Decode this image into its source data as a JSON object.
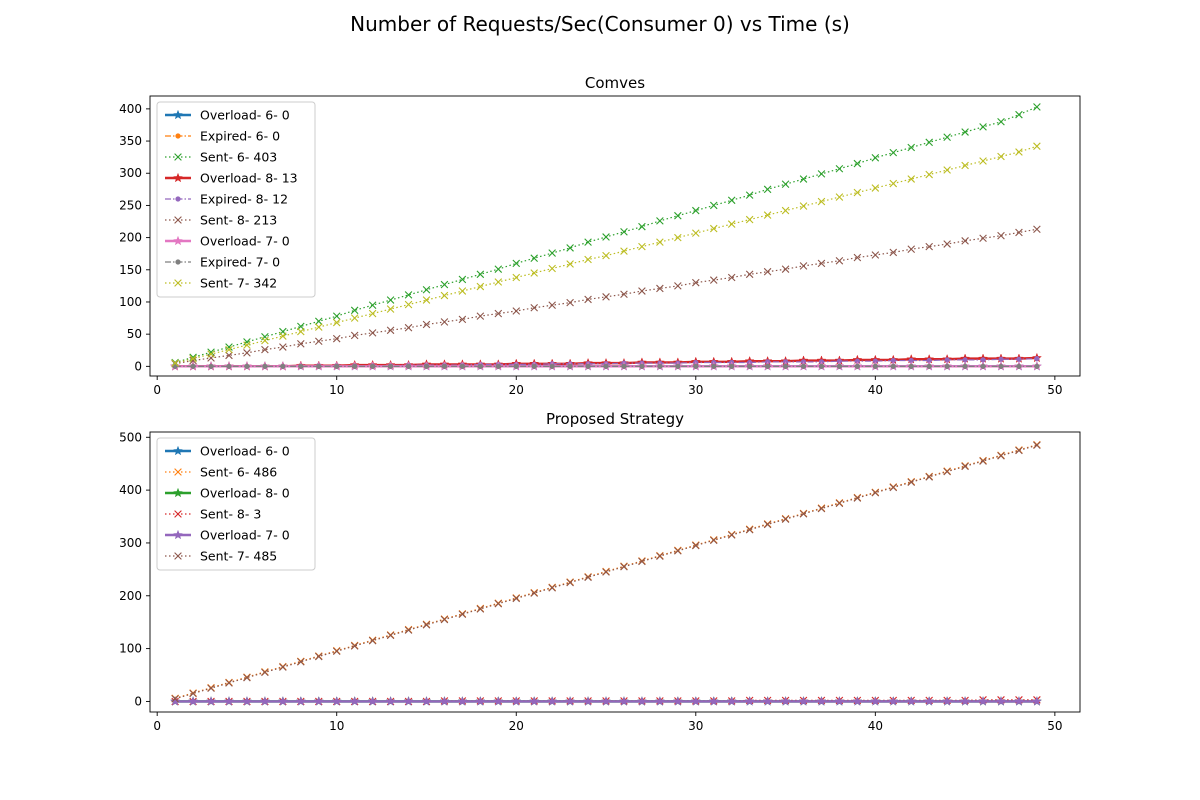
{
  "figure": {
    "suptitle": "Number of Requests/Sec(Consumer 0) vs Time (s)"
  },
  "chart_data": [
    {
      "type": "line",
      "title": "Comves",
      "xlabel": "",
      "ylabel": "",
      "xlim": [
        -0.4,
        51.4
      ],
      "ylim": [
        -15,
        420
      ],
      "x_ticks": [
        0,
        10,
        20,
        30,
        40,
        50
      ],
      "y_ticks": [
        0,
        50,
        100,
        150,
        200,
        250,
        300,
        350,
        400
      ],
      "grid": false,
      "legend_position": "upper-left",
      "x": [
        1,
        2,
        3,
        4,
        5,
        6,
        7,
        8,
        9,
        10,
        11,
        12,
        13,
        14,
        15,
        16,
        17,
        18,
        19,
        20,
        21,
        22,
        23,
        24,
        25,
        26,
        27,
        28,
        29,
        30,
        31,
        32,
        33,
        34,
        35,
        36,
        37,
        38,
        39,
        40,
        41,
        42,
        43,
        44,
        45,
        46,
        47,
        48,
        49
      ],
      "series": [
        {
          "name": "Overload- 6- 0",
          "color": "#1f77b4",
          "style": "solid-star",
          "values": [
            0,
            0,
            0,
            0,
            0,
            0,
            0,
            0,
            0,
            0,
            0,
            0,
            0,
            0,
            0,
            0,
            0,
            0,
            0,
            0,
            0,
            0,
            0,
            0,
            0,
            0,
            0,
            0,
            0,
            0,
            0,
            0,
            0,
            0,
            0,
            0,
            0,
            0,
            0,
            0,
            0,
            0,
            0,
            0,
            0,
            0,
            0,
            0,
            0
          ]
        },
        {
          "name": "Expired- 6- 0",
          "color": "#ff7f0e",
          "style": "dashdot-dot",
          "values": [
            0,
            0,
            0,
            0,
            0,
            0,
            0,
            0,
            0,
            0,
            0,
            0,
            0,
            0,
            0,
            0,
            0,
            0,
            0,
            0,
            0,
            0,
            0,
            0,
            0,
            0,
            0,
            0,
            0,
            0,
            0,
            0,
            0,
            0,
            0,
            0,
            0,
            0,
            0,
            0,
            0,
            0,
            0,
            0,
            0,
            0,
            0,
            0,
            0
          ]
        },
        {
          "name": "Sent- 6- 403",
          "color": "#2ca02c",
          "style": "dotted-x",
          "values": [
            6,
            14,
            22,
            30,
            38,
            46,
            54,
            62,
            70,
            78,
            87,
            95,
            103,
            111,
            119,
            127,
            135,
            143,
            151,
            160,
            168,
            176,
            184,
            193,
            201,
            209,
            217,
            226,
            234,
            242,
            250,
            258,
            266,
            275,
            283,
            291,
            299,
            307,
            315,
            324,
            332,
            340,
            348,
            356,
            364,
            372,
            380,
            391,
            403
          ]
        },
        {
          "name": "Overload- 8- 13",
          "color": "#d62728",
          "style": "solid-star",
          "values": [
            0,
            0,
            0,
            0,
            0,
            0,
            0,
            1,
            1,
            1,
            2,
            2,
            2,
            2,
            3,
            3,
            3,
            3,
            3,
            4,
            4,
            4,
            4,
            5,
            5,
            5,
            6,
            6,
            6,
            7,
            7,
            7,
            8,
            8,
            8,
            9,
            9,
            9,
            10,
            10,
            10,
            11,
            11,
            11,
            12,
            12,
            12,
            12,
            13
          ]
        },
        {
          "name": "Expired- 8- 12",
          "color": "#9467bd",
          "style": "dashdot-dot",
          "values": [
            0,
            0,
            0,
            0,
            0,
            0,
            0,
            0,
            1,
            1,
            1,
            1,
            1,
            2,
            2,
            2,
            2,
            3,
            3,
            3,
            3,
            4,
            4,
            4,
            4,
            5,
            5,
            5,
            5,
            6,
            6,
            6,
            6,
            7,
            7,
            7,
            7,
            8,
            8,
            8,
            9,
            9,
            9,
            10,
            10,
            10,
            11,
            11,
            12
          ]
        },
        {
          "name": "Sent- 8- 213",
          "color": "#8c564b",
          "style": "dotted-x",
          "values": [
            4,
            9,
            13,
            17,
            21,
            26,
            30,
            35,
            39,
            43,
            48,
            52,
            56,
            60,
            65,
            69,
            73,
            78,
            82,
            86,
            91,
            95,
            99,
            104,
            108,
            112,
            117,
            121,
            125,
            130,
            134,
            138,
            143,
            147,
            151,
            156,
            160,
            164,
            169,
            173,
            177,
            182,
            186,
            190,
            195,
            199,
            203,
            208,
            213
          ]
        },
        {
          "name": "Overload- 7- 0",
          "color": "#e377c2",
          "style": "solid-star",
          "values": [
            0,
            0,
            0,
            0,
            0,
            0,
            0,
            0,
            0,
            0,
            0,
            0,
            0,
            0,
            0,
            0,
            0,
            0,
            0,
            0,
            0,
            0,
            0,
            0,
            0,
            0,
            0,
            0,
            0,
            0,
            0,
            0,
            0,
            0,
            0,
            0,
            0,
            0,
            0,
            0,
            0,
            0,
            0,
            0,
            0,
            0,
            0,
            0,
            0
          ]
        },
        {
          "name": "Expired- 7- 0",
          "color": "#7f7f7f",
          "style": "dashdot-dot",
          "values": [
            0,
            0,
            0,
            0,
            0,
            0,
            0,
            0,
            0,
            0,
            0,
            0,
            0,
            0,
            0,
            0,
            0,
            0,
            0,
            0,
            0,
            0,
            0,
            0,
            0,
            0,
            0,
            0,
            0,
            0,
            0,
            0,
            0,
            0,
            0,
            0,
            0,
            0,
            0,
            0,
            0,
            0,
            0,
            0,
            0,
            0,
            0,
            0,
            0
          ]
        },
        {
          "name": "Sent- 7- 342",
          "color": "#bcbd22",
          "style": "dotted-x",
          "values": [
            5,
            12,
            19,
            26,
            33,
            40,
            47,
            54,
            61,
            68,
            75,
            82,
            89,
            96,
            103,
            110,
            117,
            124,
            131,
            138,
            145,
            152,
            159,
            166,
            172,
            179,
            186,
            193,
            200,
            207,
            214,
            221,
            228,
            235,
            242,
            249,
            256,
            263,
            270,
            277,
            284,
            291,
            298,
            305,
            312,
            319,
            326,
            333,
            342
          ]
        }
      ]
    },
    {
      "type": "line",
      "title": "Proposed Strategy",
      "xlabel": "",
      "ylabel": "",
      "xlim": [
        -0.4,
        51.4
      ],
      "ylim": [
        -20,
        510
      ],
      "x_ticks": [
        0,
        10,
        20,
        30,
        40,
        50
      ],
      "y_ticks": [
        0,
        100,
        200,
        300,
        400,
        500
      ],
      "grid": false,
      "legend_position": "upper-left",
      "x": [
        1,
        2,
        3,
        4,
        5,
        6,
        7,
        8,
        9,
        10,
        11,
        12,
        13,
        14,
        15,
        16,
        17,
        18,
        19,
        20,
        21,
        22,
        23,
        24,
        25,
        26,
        27,
        28,
        29,
        30,
        31,
        32,
        33,
        34,
        35,
        36,
        37,
        38,
        39,
        40,
        41,
        42,
        43,
        44,
        45,
        46,
        47,
        48,
        49
      ],
      "series": [
        {
          "name": "Overload- 6- 0",
          "color": "#1f77b4",
          "style": "solid-star",
          "values": [
            0,
            0,
            0,
            0,
            0,
            0,
            0,
            0,
            0,
            0,
            0,
            0,
            0,
            0,
            0,
            0,
            0,
            0,
            0,
            0,
            0,
            0,
            0,
            0,
            0,
            0,
            0,
            0,
            0,
            0,
            0,
            0,
            0,
            0,
            0,
            0,
            0,
            0,
            0,
            0,
            0,
            0,
            0,
            0,
            0,
            0,
            0,
            0,
            0
          ]
        },
        {
          "name": "Sent- 6- 486",
          "color": "#ff7f0e",
          "style": "dotted-x",
          "values": [
            6,
            16,
            26,
            36,
            46,
            56,
            66,
            76,
            86,
            96,
            106,
            116,
            126,
            136,
            146,
            156,
            166,
            176,
            186,
            196,
            206,
            216,
            226,
            236,
            246,
            256,
            266,
            276,
            286,
            296,
            306,
            316,
            326,
            336,
            346,
            356,
            366,
            376,
            386,
            396,
            406,
            416,
            426,
            436,
            446,
            456,
            466,
            476,
            486
          ]
        },
        {
          "name": "Overload- 8- 0",
          "color": "#2ca02c",
          "style": "solid-star",
          "values": [
            0,
            0,
            0,
            0,
            0,
            0,
            0,
            0,
            0,
            0,
            0,
            0,
            0,
            0,
            0,
            0,
            0,
            0,
            0,
            0,
            0,
            0,
            0,
            0,
            0,
            0,
            0,
            0,
            0,
            0,
            0,
            0,
            0,
            0,
            0,
            0,
            0,
            0,
            0,
            0,
            0,
            0,
            0,
            0,
            0,
            0,
            0,
            0,
            0
          ]
        },
        {
          "name": "Sent- 8- 3",
          "color": "#d62728",
          "style": "dotted-x",
          "values": [
            0,
            0,
            0,
            0,
            0,
            0,
            0,
            0,
            0,
            0,
            0,
            0,
            0,
            0,
            0,
            1,
            1,
            1,
            1,
            1,
            1,
            1,
            1,
            1,
            1,
            1,
            1,
            1,
            1,
            1,
            1,
            1,
            2,
            2,
            2,
            2,
            2,
            2,
            2,
            2,
            2,
            2,
            2,
            2,
            2,
            3,
            3,
            3,
            3
          ]
        },
        {
          "name": "Overload- 7- 0",
          "color": "#9467bd",
          "style": "solid-star",
          "values": [
            0,
            0,
            0,
            0,
            0,
            0,
            0,
            0,
            0,
            0,
            0,
            0,
            0,
            0,
            0,
            0,
            0,
            0,
            0,
            0,
            0,
            0,
            0,
            0,
            0,
            0,
            0,
            0,
            0,
            0,
            0,
            0,
            0,
            0,
            0,
            0,
            0,
            0,
            0,
            0,
            0,
            0,
            0,
            0,
            0,
            0,
            0,
            0,
            0
          ]
        },
        {
          "name": "Sent- 7- 485",
          "color": "#8c564b",
          "style": "dotted-x",
          "values": [
            5,
            15,
            25,
            35,
            45,
            55,
            65,
            75,
            85,
            95,
            105,
            115,
            125,
            135,
            145,
            155,
            165,
            175,
            185,
            195,
            205,
            215,
            225,
            235,
            245,
            255,
            265,
            275,
            285,
            295,
            305,
            315,
            325,
            335,
            345,
            355,
            365,
            375,
            385,
            395,
            405,
            415,
            425,
            435,
            445,
            455,
            465,
            475,
            485
          ]
        }
      ]
    }
  ]
}
